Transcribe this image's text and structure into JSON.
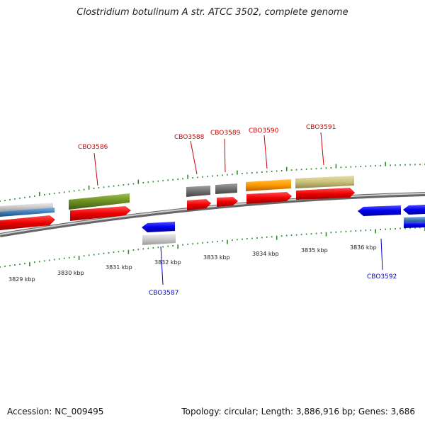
{
  "title": "Clostridium botulinum A str. ATCC 3502, complete genome",
  "footer": {
    "accession": "Accession: NC_009495",
    "topology": "Topology: circular; Length: 3,886,916 bp; Genes: 3,686"
  },
  "colors": {
    "backbone": "#888888",
    "tick": "#2a8a2a",
    "label_forward": "#cc0000",
    "label_reverse": "#0000cc"
  },
  "kbp_labels": [
    "3829 kbp",
    "3830 kbp",
    "3831 kbp",
    "3832 kbp",
    "3833 kbp",
    "3834 kbp",
    "3835 kbp",
    "3836 kbp"
  ],
  "gene_labels": [
    {
      "text": "CBO3586",
      "color": "#cc0000"
    },
    {
      "text": "CBO3588",
      "color": "#cc0000"
    },
    {
      "text": "CBO3589",
      "color": "#cc0000"
    },
    {
      "text": "CBO3590",
      "color": "#cc0000"
    },
    {
      "text": "CBO3591",
      "color": "#cc0000"
    },
    {
      "text": "CBO3587",
      "color": "#0000cc"
    },
    {
      "text": "CBO3592",
      "color": "#0000cc"
    }
  ]
}
